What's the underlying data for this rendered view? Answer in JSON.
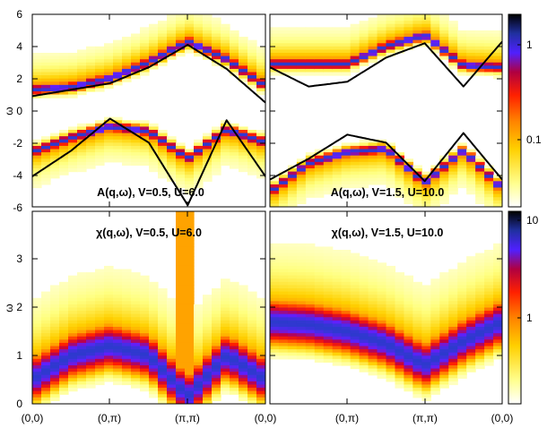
{
  "chart_data": [
    {
      "type": "heatmap",
      "title": "A(q,ω), V=0.5, U=6.0",
      "ylabel": "ω",
      "ylim": [
        -6,
        6
      ],
      "yticks": [
        "6",
        "4",
        "2",
        "0",
        "-2",
        "-4",
        "-6"
      ],
      "xticks": [
        "(0,0)",
        "(0,π)",
        "(π,π)",
        "(0,0)"
      ],
      "bands": [
        {
          "q": [
            0,
            0.5,
            1,
            1.5,
            2,
            2.5,
            3
          ],
          "w": [
            1.3,
            1.45,
            2.0,
            3.0,
            4.3,
            3.2,
            1.5
          ]
        },
        {
          "q": [
            0,
            0.5,
            1,
            1.5,
            2,
            2.5,
            3
          ],
          "w": [
            -2.6,
            -1.7,
            -1.0,
            -1.3,
            -3.0,
            -1.2,
            -2.0
          ]
        }
      ],
      "curves": [
        {
          "q": [
            0,
            0.5,
            1,
            1.5,
            2,
            2.5,
            3
          ],
          "w": [
            0.9,
            1.3,
            1.7,
            2.7,
            4.1,
            2.6,
            0.5
          ]
        },
        {
          "q": [
            0,
            0.5,
            1,
            1.5,
            2,
            2.5,
            3
          ],
          "w": [
            -4.1,
            -2.5,
            -0.5,
            -2.0,
            -5.9,
            -0.6,
            -4.1
          ]
        }
      ]
    },
    {
      "type": "heatmap",
      "title": "A(q,ω), V=1.5, U=10.0",
      "ylim": [
        -6,
        6
      ],
      "xticks": [
        "(0,0)",
        "(0,π)",
        "(π,π)",
        "(0,0)"
      ],
      "bands": [
        {
          "q": [
            0,
            0.5,
            1,
            1.5,
            2,
            2.5,
            3
          ],
          "w": [
            2.9,
            2.9,
            2.9,
            4.0,
            4.7,
            2.8,
            2.7
          ]
        },
        {
          "q": [
            0,
            0.5,
            1,
            1.5,
            2,
            2.5,
            3
          ],
          "w": [
            -5.1,
            -3.3,
            -2.6,
            -2.4,
            -4.5,
            -2.5,
            -4.9
          ]
        }
      ],
      "curves": [
        {
          "q": [
            0,
            0.5,
            1,
            1.5,
            2,
            2.5,
            3
          ],
          "w": [
            2.7,
            1.5,
            1.8,
            3.3,
            4.2,
            1.5,
            4.3
          ]
        },
        {
          "q": [
            0,
            0.5,
            1,
            1.5,
            2,
            2.5,
            3
          ],
          "w": [
            -4.3,
            -3.0,
            -1.5,
            -2.0,
            -4.4,
            -1.4,
            -4.3
          ]
        }
      ]
    },
    {
      "type": "heatmap",
      "title": "χ(q,ω), V=0.5, U=6.0",
      "ylabel": "ω",
      "ylim": [
        0,
        4
      ],
      "yticks": [
        "0",
        "1",
        "2",
        "3"
      ],
      "xticks": [
        "(0,0)",
        "(0,π)",
        "(π,π)",
        "(0,0)"
      ],
      "bands": [
        {
          "q": [
            0,
            0.5,
            1,
            1.5,
            2,
            2.5,
            3
          ],
          "w": [
            0.5,
            1.0,
            1.2,
            1.0,
            0.15,
            1.0,
            0.5
          ]
        }
      ]
    },
    {
      "type": "heatmap",
      "title": "χ(q,ω), V=1.5, U=10.0",
      "ylim": [
        0,
        4
      ],
      "xticks": [
        "(0,0)",
        "(0,π)",
        "(π,π)",
        "(0,0)"
      ],
      "bands": [
        {
          "q": [
            0,
            0.5,
            1,
            1.5,
            2,
            2.5,
            3
          ],
          "w": [
            1.7,
            1.65,
            1.5,
            1.25,
            0.8,
            1.3,
            1.7
          ]
        }
      ]
    }
  ],
  "colorbars": [
    {
      "ticks": [
        "1",
        "0.1"
      ]
    },
    {
      "ticks": [
        "10",
        "1"
      ]
    }
  ],
  "colors": {
    "palette": [
      "#ffffff",
      "#ffff80",
      "#ffd000",
      "#ff8000",
      "#ff2000",
      "#c00040",
      "#6020ff",
      "#2040c0",
      "#000000"
    ],
    "curve": "#000000"
  }
}
